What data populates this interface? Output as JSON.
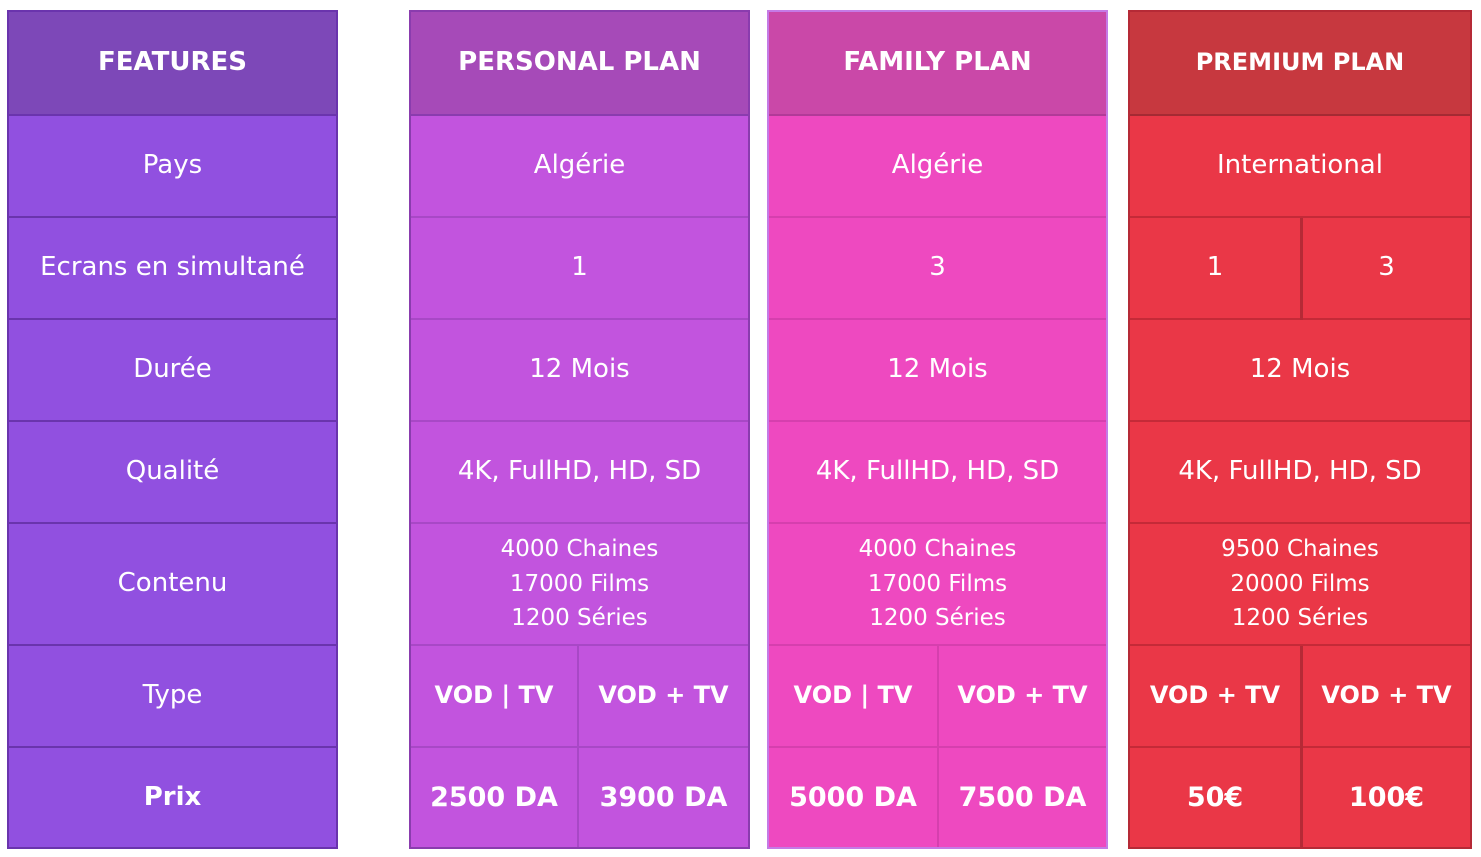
{
  "features": {
    "header": "FEATURES",
    "rows": [
      "Pays",
      "Ecrans en simultané",
      "Durée",
      "Qualité",
      "Contenu",
      "Type",
      "Prix"
    ]
  },
  "plans": [
    {
      "header": "PERSONAL PLAN",
      "pays": "Algérie",
      "ecrans": [
        "1"
      ],
      "duree": "12 Mois",
      "qualite": "4K, FullHD, HD, SD",
      "contenu": [
        "4000 Chaines",
        "17000 Films",
        "1200 Séries"
      ],
      "type": [
        "VOD | TV",
        "VOD + TV"
      ],
      "prix": [
        "2500 DA",
        "3900 DA"
      ]
    },
    {
      "header": "FAMILY PLAN",
      "pays": "Algérie",
      "ecrans": [
        "3"
      ],
      "duree": "12 Mois",
      "qualite": "4K, FullHD, HD, SD",
      "contenu": [
        "4000 Chaines",
        "17000 Films",
        "1200 Séries"
      ],
      "type": [
        "VOD | TV",
        "VOD + TV"
      ],
      "prix": [
        "5000 DA",
        "7500 DA"
      ]
    },
    {
      "header": "PREMIUM PLAN",
      "pays": "International",
      "ecrans": [
        "1",
        "3"
      ],
      "duree": "12 Mois",
      "qualite": "4K, FullHD, HD, SD",
      "contenu": [
        "9500 Chaines",
        "20000 Films",
        "1200 Séries"
      ],
      "type": [
        "VOD + TV",
        "VOD + TV"
      ],
      "prix": [
        "50€",
        "100€"
      ]
    }
  ],
  "colors": {
    "features": "#9150e0",
    "personal": "#c254de",
    "family": "#ee49c0",
    "premium": "#ea3747"
  }
}
